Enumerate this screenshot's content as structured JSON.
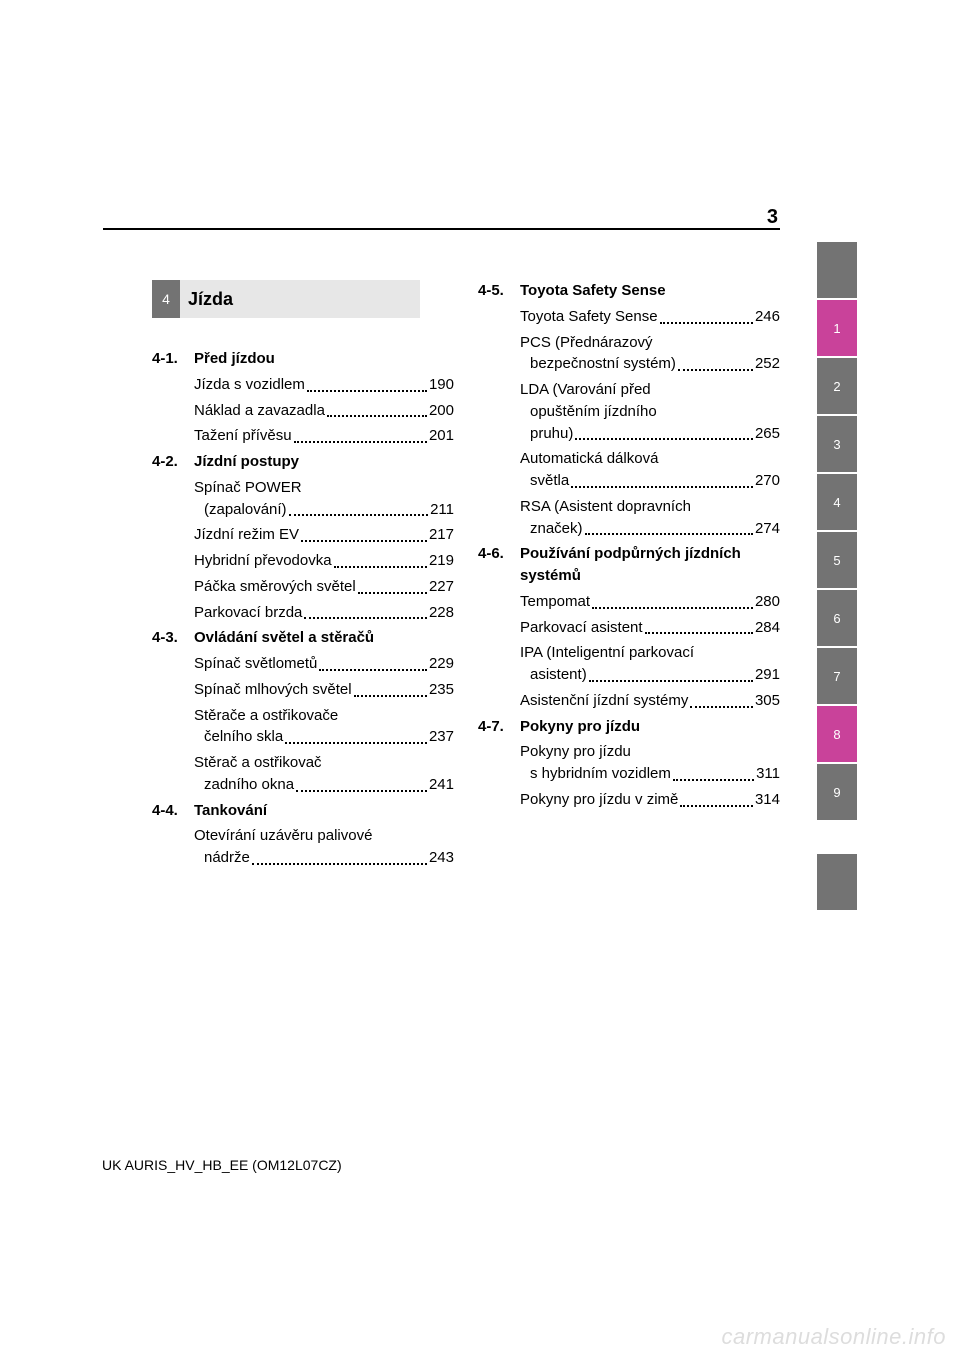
{
  "page_number": "3",
  "chapter": {
    "num": "4",
    "title": "Jízda"
  },
  "tabs": [
    {
      "label": "",
      "color": "gray"
    },
    {
      "label": "1",
      "color": "magenta"
    },
    {
      "label": "2",
      "color": "gray"
    },
    {
      "label": "3",
      "color": "gray"
    },
    {
      "label": "4",
      "color": "gray"
    },
    {
      "label": "5",
      "color": "gray"
    },
    {
      "label": "6",
      "color": "gray"
    },
    {
      "label": "7",
      "color": "gray"
    },
    {
      "label": "8",
      "color": "magenta"
    },
    {
      "label": "9",
      "color": "gray"
    }
  ],
  "left_sections": [
    {
      "num": "4-1.",
      "title": "Před jízdou",
      "entries": [
        {
          "lines": [
            "Jízda s vozidlem"
          ],
          "page": "190"
        },
        {
          "lines": [
            "Náklad a zavazadla"
          ],
          "page": "200"
        },
        {
          "lines": [
            "Tažení přívěsu"
          ],
          "page": "201"
        }
      ]
    },
    {
      "num": "4-2.",
      "title": "Jízdní postupy",
      "entries": [
        {
          "lines": [
            "Spínač POWER",
            "(zapalování)"
          ],
          "page": "211"
        },
        {
          "lines": [
            "Jízdní režim EV"
          ],
          "page": "217"
        },
        {
          "lines": [
            "Hybridní převodovka"
          ],
          "page": "219"
        },
        {
          "lines": [
            "Páčka směrových světel"
          ],
          "page": "227"
        },
        {
          "lines": [
            "Parkovací brzda"
          ],
          "page": "228"
        }
      ]
    },
    {
      "num": "4-3.",
      "title": "Ovládání světel a stěračů",
      "entries": [
        {
          "lines": [
            "Spínač světlometů"
          ],
          "page": "229"
        },
        {
          "lines": [
            "Spínač mlhových světel"
          ],
          "page": "235"
        },
        {
          "lines": [
            "Stěrače a ostřikovače",
            "čelního skla"
          ],
          "page": "237"
        },
        {
          "lines": [
            "Stěrač a ostřikovač",
            "zadního okna"
          ],
          "page": "241"
        }
      ]
    },
    {
      "num": "4-4.",
      "title": "Tankování",
      "entries": [
        {
          "lines": [
            "Otevírání uzávěru palivové",
            "nádrže"
          ],
          "page": "243"
        }
      ]
    }
  ],
  "right_sections": [
    {
      "num": "4-5.",
      "title": "Toyota Safety Sense",
      "entries": [
        {
          "lines": [
            "Toyota Safety Sense"
          ],
          "page": "246"
        },
        {
          "lines": [
            "PCS (Přednárazový",
            "bezpečnostní systém)"
          ],
          "page": "252"
        },
        {
          "lines": [
            "LDA (Varování před",
            "opuštěním jízdního",
            "pruhu)"
          ],
          "page": "265"
        },
        {
          "lines": [
            "Automatická dálková",
            "světla"
          ],
          "page": "270"
        },
        {
          "lines": [
            "RSA (Asistent dopravních",
            "značek)"
          ],
          "page": "274"
        }
      ]
    },
    {
      "num": "4-6.",
      "title": "Používání podpůrných jízdních systémů",
      "entries": [
        {
          "lines": [
            "Tempomat"
          ],
          "page": "280"
        },
        {
          "lines": [
            "Parkovací asistent"
          ],
          "page": "284"
        },
        {
          "lines": [
            "IPA (Inteligentní parkovací",
            "asistent)"
          ],
          "page": "291"
        },
        {
          "lines": [
            "Asistenční jízdní systémy"
          ],
          "page": "305"
        }
      ]
    },
    {
      "num": "4-7.",
      "title": "Pokyny pro jízdu",
      "entries": [
        {
          "lines": [
            "Pokyny pro jízdu",
            "s hybridním vozidlem"
          ],
          "page": "311"
        },
        {
          "lines": [
            "Pokyny pro jízdu v zimě"
          ],
          "page": "314"
        }
      ]
    }
  ],
  "footer": "UK AURIS_HV_HB_EE (OM12L07CZ)",
  "watermark": "carmanualsonline.info",
  "colors": {
    "gray": "#737373",
    "magenta": "#c9429a",
    "chapter_bg": "#e7e7e7",
    "watermark": "#dddddd"
  }
}
